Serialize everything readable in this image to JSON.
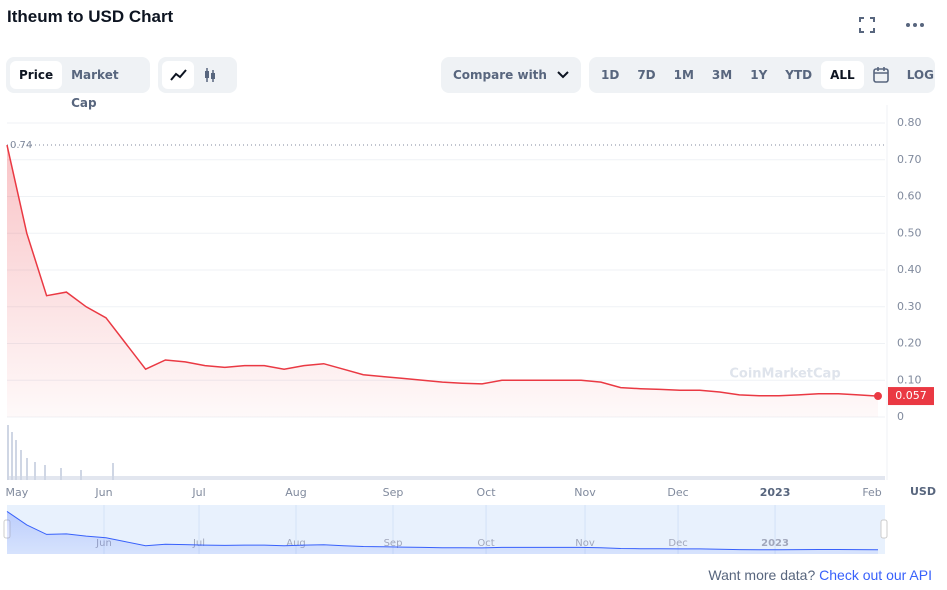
{
  "header": {
    "title": "Itheum to USD Chart"
  },
  "toolbar": {
    "metric_tabs": [
      "Price",
      "Market Cap"
    ],
    "compare": "Compare with",
    "ranges": [
      "1D",
      "7D",
      "1M",
      "3M",
      "1Y",
      "YTD",
      "ALL"
    ],
    "log": "LOG"
  },
  "chart_data": {
    "type": "line",
    "color": "#ea3943",
    "values": [
      0.74,
      0.5,
      0.33,
      0.34,
      0.3,
      0.27,
      0.2,
      0.13,
      0.155,
      0.15,
      0.14,
      0.135,
      0.14,
      0.14,
      0.13,
      0.14,
      0.145,
      0.13,
      0.115,
      0.11,
      0.105,
      0.1,
      0.095,
      0.092,
      0.09,
      0.1,
      0.1,
      0.1,
      0.1,
      0.1,
      0.095,
      0.08,
      0.077,
      0.075,
      0.073,
      0.073,
      0.068,
      0.06,
      0.058,
      0.058,
      0.06,
      0.063,
      0.063,
      0.06,
      0.057
    ],
    "high": 0.74,
    "watermark": "CoinMarketCap",
    "currency": "USD",
    "xlim": [
      0,
      44
    ],
    "xticks": [
      {
        "value": 0.5,
        "label": "May"
      },
      {
        "value": 4.9,
        "label": "Jun"
      },
      {
        "value": 9.7,
        "label": "Jul"
      },
      {
        "value": 14.6,
        "label": "Aug"
      },
      {
        "value": 19.5,
        "label": "Sep"
      },
      {
        "value": 24.2,
        "label": "Oct"
      },
      {
        "value": 29.2,
        "label": "Nov"
      },
      {
        "value": 33.9,
        "label": "Dec"
      },
      {
        "value": 38.8,
        "label": "2023"
      },
      {
        "value": 43.7,
        "label": "Feb"
      }
    ],
    "ylim": [
      0,
      0.8
    ],
    "yticks": [
      0,
      {
        "value": 0.1,
        "label": "0.10"
      },
      {
        "value": 0.2,
        "label": "0.20"
      },
      {
        "value": 0.3,
        "label": "0.30"
      },
      {
        "value": 0.4,
        "label": "0.40"
      },
      {
        "value": 0.5,
        "label": "0.50"
      },
      {
        "value": 0.6,
        "label": "0.60"
      },
      {
        "value": 0.7,
        "label": "0.70"
      },
      {
        "value": 0.8,
        "label": "0.80"
      }
    ],
    "grid": true
  },
  "footer": {
    "text": "Want more data?",
    "link": "Check out our API"
  }
}
